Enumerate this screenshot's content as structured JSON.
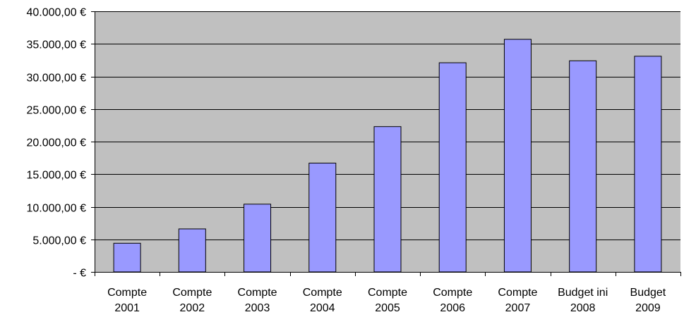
{
  "chart_data": {
    "type": "bar",
    "title": "",
    "xlabel": "",
    "ylabel": "",
    "categories": [
      [
        "Compte",
        "2001"
      ],
      [
        "Compte",
        "2002"
      ],
      [
        "Compte",
        "2003"
      ],
      [
        "Compte",
        "2004"
      ],
      [
        "Compte",
        "2005"
      ],
      [
        "Compte",
        "2006"
      ],
      [
        "Compte",
        "2007"
      ],
      [
        "Budget ini",
        "2008"
      ],
      [
        "Budget",
        "2009"
      ]
    ],
    "values": [
      4400,
      6600,
      10400,
      16700,
      22300,
      32100,
      35700,
      32400,
      33100
    ],
    "ylim": [
      0,
      40000
    ],
    "y_ticks": [
      {
        "value": 0,
        "label": "-   €"
      },
      {
        "value": 5000,
        "label": "5.000,00 €"
      },
      {
        "value": 10000,
        "label": "10.000,00 €"
      },
      {
        "value": 15000,
        "label": "15.000,00 €"
      },
      {
        "value": 20000,
        "label": "20.000,00 €"
      },
      {
        "value": 25000,
        "label": "25.000,00 €"
      },
      {
        "value": 30000,
        "label": "30.000,00 €"
      },
      {
        "value": 35000,
        "label": "35.000,00 €"
      },
      {
        "value": 40000,
        "label": "40.000,00 €"
      }
    ],
    "grid": true,
    "legend": "none",
    "colors": {
      "bar_fill": "#9999FF",
      "bar_stroke": "#000000",
      "plot_background": "#C0C0C0",
      "gridline": "#000000"
    }
  }
}
